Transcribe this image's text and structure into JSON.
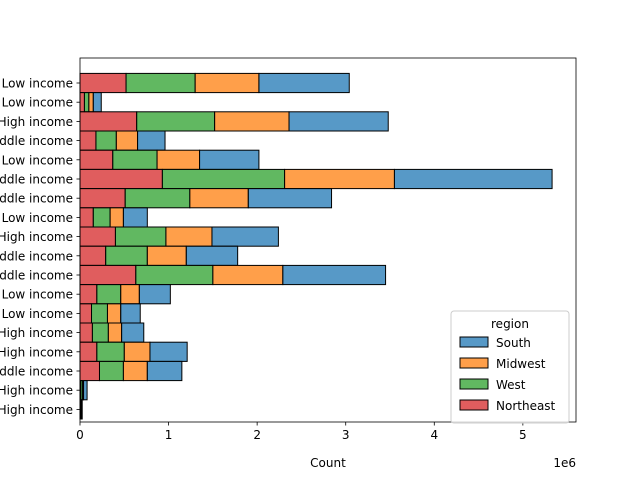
{
  "chart_data": {
    "type": "bar",
    "orientation": "horizontal",
    "stacked": true,
    "title": "",
    "xlabel": "Count",
    "ylabel": "",
    "x_offset_text": "1e6",
    "xlim": [
      0,
      5.6
    ],
    "x_ticks": [
      0,
      1,
      2,
      3,
      4,
      5
    ],
    "categories": [
      "Low income",
      "Low income",
      "High income",
      "Middle income",
      "Low income",
      "Middle income",
      "Middle income",
      "Low income",
      "High income",
      "Middle income",
      "Middle income",
      "Low income",
      "Low income",
      "High income",
      "High income",
      "Middle income",
      "High income",
      "High income"
    ],
    "series": [
      {
        "name": "Northeast",
        "color": "#d62728",
        "values": [
          0.52,
          0.05,
          0.64,
          0.18,
          0.37,
          0.93,
          0.51,
          0.15,
          0.4,
          0.29,
          0.63,
          0.19,
          0.13,
          0.14,
          0.19,
          0.22,
          0.01,
          0.005
        ]
      },
      {
        "name": "West",
        "color": "#2ca02c",
        "values": [
          0.78,
          0.05,
          0.88,
          0.23,
          0.5,
          1.38,
          0.73,
          0.19,
          0.57,
          0.47,
          0.87,
          0.27,
          0.18,
          0.18,
          0.31,
          0.27,
          0.02,
          0.005
        ]
      },
      {
        "name": "Midwest",
        "color": "#ff7f0e",
        "values": [
          0.72,
          0.05,
          0.84,
          0.24,
          0.48,
          1.24,
          0.66,
          0.15,
          0.52,
          0.44,
          0.79,
          0.21,
          0.15,
          0.15,
          0.29,
          0.27,
          0.01,
          0.005
        ]
      },
      {
        "name": "South",
        "color": "#1f77b4",
        "values": [
          1.02,
          0.09,
          1.12,
          0.31,
          0.67,
          1.78,
          0.94,
          0.27,
          0.75,
          0.58,
          1.16,
          0.35,
          0.22,
          0.25,
          0.42,
          0.39,
          0.04,
          0.01
        ]
      }
    ],
    "legend": {
      "title": "region",
      "placement": "lower-right",
      "entries": [
        "South",
        "Midwest",
        "West",
        "Northeast"
      ]
    },
    "grid": false
  }
}
